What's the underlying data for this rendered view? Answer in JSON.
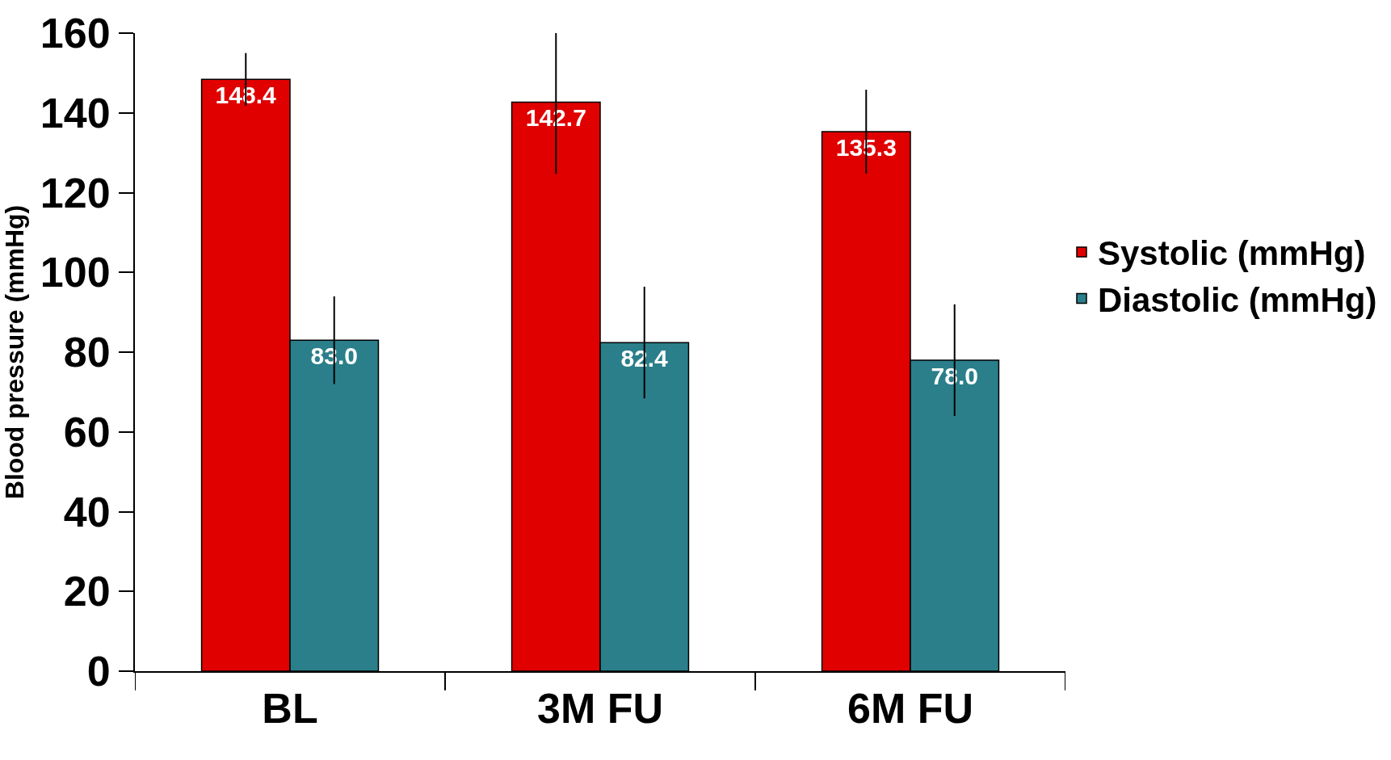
{
  "chart_data": {
    "type": "bar",
    "ylabel": "Blood pressure (mmHg)",
    "categories": [
      "BL",
      "3M FU",
      "6M FU"
    ],
    "series": [
      {
        "name": "Systolic (mmHg)",
        "color": "#e00000",
        "values": [
          148.4,
          142.7,
          135.3
        ],
        "errors": [
          6.6,
          18,
          10.5
        ],
        "value_labels": [
          "148.4",
          "142.7",
          "135.3"
        ]
      },
      {
        "name": "Diastolic (mmHg)",
        "color": "#2a7f8a",
        "values": [
          83.0,
          82.4,
          78.0
        ],
        "errors": [
          11,
          14,
          14
        ],
        "value_labels": [
          "83.0",
          "82.4",
          "78.0"
        ]
      }
    ],
    "ylim": [
      0,
      160
    ],
    "yticks": [
      0,
      20,
      40,
      60,
      80,
      100,
      120,
      140,
      160
    ],
    "legend": "right"
  }
}
